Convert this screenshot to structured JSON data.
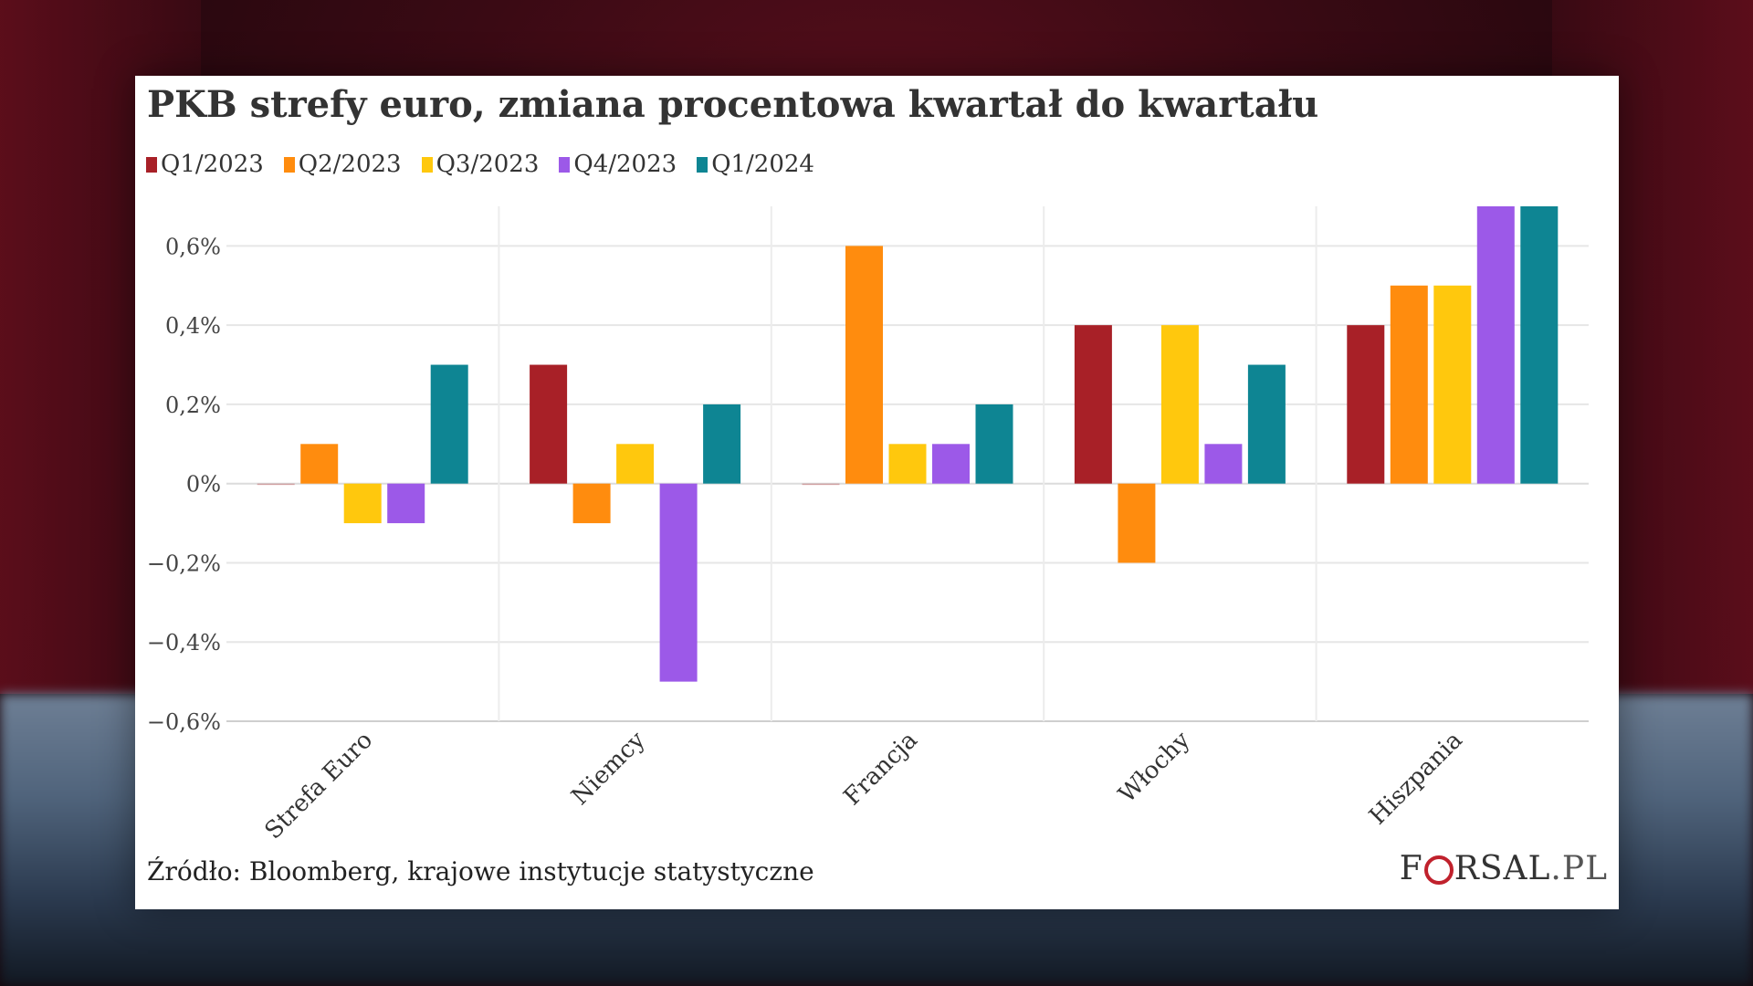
{
  "title": "PKB strefy euro, zmiana procentowa kwartał do kwartału",
  "source": "Źródło: Bloomberg, krajowe instytucje statystyczne",
  "logo": {
    "text_a": "F",
    "text_b": "RSAL",
    "text_c": ".PL"
  },
  "colors": {
    "Q1/2023": "#a82027",
    "Q2/2023": "#ff8c0e",
    "Q3/2023": "#ffc80d",
    "Q4/2023": "#9c59e8",
    "Q1/2024": "#0e8593"
  },
  "chart_data": {
    "type": "bar",
    "title": "PKB strefy euro, zmiana procentowa kwartał do kwartału",
    "categories": [
      "Strefa Euro",
      "Niemcy",
      "Francja",
      "Włochy",
      "Hiszpania"
    ],
    "series": [
      {
        "name": "Q1/2023",
        "values": [
          0.0,
          0.3,
          0.0,
          0.4,
          0.4
        ]
      },
      {
        "name": "Q2/2023",
        "values": [
          0.1,
          -0.1,
          0.6,
          -0.2,
          0.5
        ]
      },
      {
        "name": "Q3/2023",
        "values": [
          -0.1,
          0.1,
          0.1,
          0.4,
          0.5
        ]
      },
      {
        "name": "Q4/2023",
        "values": [
          -0.1,
          -0.5,
          0.1,
          0.1,
          0.7
        ]
      },
      {
        "name": "Q1/2024",
        "values": [
          0.3,
          0.2,
          0.2,
          0.3,
          0.7
        ]
      }
    ],
    "yticks": [
      0.6,
      0.4,
      0.2,
      0,
      -0.2,
      -0.4,
      -0.6
    ],
    "ytick_labels": [
      "0,6%",
      "0,4%",
      "0,2%",
      "0%",
      "−0,2%",
      "−0,4%",
      "−0,6%"
    ],
    "ylim": [
      -0.6,
      0.7
    ],
    "legend_position": "top-left",
    "grid": true
  }
}
